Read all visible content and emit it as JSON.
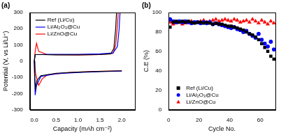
{
  "chart_data": [
    {
      "type": "line",
      "title": "(a)",
      "xlabel": "Capacity (mAh cm⁻²)",
      "ylabel": "Potential (V, vs Li/Li⁺)",
      "xlim": [
        -0.1,
        2.3
      ],
      "xticks": [
        {
          "value": 0,
          "label": "0.0"
        },
        0.5,
        {
          "value": 1,
          "label": "1.0"
        },
        1.5,
        {
          "value": 2,
          "label": "2.0"
        }
      ],
      "ylim": [
        -300,
        300
      ],
      "yticks": [
        -300,
        -200,
        -100,
        0,
        100,
        200,
        300
      ],
      "grid": false,
      "legend": "upper left",
      "series": [
        {
          "name": "Ref (Li/Cu)",
          "color": "#000000",
          "line_style": "solid",
          "x": [
            0,
            0.01,
            0.03,
            0.06,
            0.15,
            0.5,
            1.0,
            1.5,
            2.0,
            null,
            0,
            0.02,
            0.2,
            0.5,
            1.0,
            1.5,
            1.75,
            1.82,
            1.86,
            1.88
          ],
          "values": [
            0,
            -100,
            -170,
            -120,
            -90,
            -75,
            -68,
            -64,
            -60,
            null,
            0,
            40,
            40,
            38,
            38,
            40,
            45,
            80,
            200,
            300
          ]
        },
        {
          "name": "Li/Al₂O₃@Cu",
          "color": "#0000ff",
          "line_style": "solid",
          "x": [
            0,
            0.01,
            0.02,
            0.05,
            0.15,
            0.5,
            1.0,
            1.5,
            2.0,
            null,
            0,
            0.02,
            0.3,
            1.0,
            1.5,
            1.8,
            1.9,
            1.94,
            1.96
          ],
          "values": [
            0,
            -120,
            -210,
            -150,
            -95,
            -78,
            -70,
            -65,
            -62,
            null,
            0,
            40,
            42,
            42,
            45,
            50,
            90,
            200,
            300
          ]
        },
        {
          "name": "Li/ZnO@Cu",
          "color": "#ff0000",
          "line_style": "solid",
          "x": [
            0,
            0.03,
            0.1,
            0.18,
            0.3,
            0.8,
            1.4,
            2.0,
            null,
            0,
            0.02,
            0.05,
            0.1,
            0.3,
            1.0,
            1.5,
            1.8,
            1.86,
            1.9,
            1.92
          ],
          "values": [
            0,
            -80,
            -150,
            -110,
            -85,
            -70,
            -64,
            -60,
            null,
            0,
            60,
            110,
            60,
            40,
            38,
            40,
            48,
            100,
            220,
            300
          ]
        }
      ]
    },
    {
      "type": "scatter",
      "title": "(b)",
      "xlabel": "Cycle No.",
      "ylabel": "C.E (%)",
      "xlim": [
        0,
        70
      ],
      "xticks": [
        0,
        20,
        40,
        60
      ],
      "ylim": [
        0,
        100
      ],
      "yticks": [
        0,
        20,
        40,
        60,
        80,
        100
      ],
      "grid": false,
      "legend": "lower left",
      "series": [
        {
          "name": "Ref (Li/Cu)",
          "color": "#000000",
          "marker": "square",
          "x": [
            1,
            3,
            5,
            7,
            9,
            11,
            13,
            15,
            17,
            19,
            21,
            23,
            25,
            27,
            29,
            31,
            33,
            35,
            37,
            39,
            41,
            43,
            45,
            47,
            49,
            51,
            53,
            55,
            57,
            59,
            61,
            63,
            65,
            67,
            69
          ],
          "values": [
            85,
            90,
            91,
            90,
            91,
            90,
            91,
            90,
            89,
            90,
            90,
            89,
            90,
            89,
            88,
            89,
            88,
            88,
            87,
            86,
            86,
            85,
            84,
            83,
            82,
            80,
            78,
            77,
            75,
            72,
            68,
            64,
            60,
            55,
            52
          ]
        },
        {
          "name": "Li/Al₂O₃@Cu",
          "color": "#0000ff",
          "marker": "circle",
          "x": [
            1,
            3,
            5,
            7,
            9,
            11,
            13,
            15,
            17,
            19,
            21,
            23,
            25,
            27,
            29,
            31,
            33,
            35,
            37,
            39,
            41,
            43,
            45,
            47,
            49,
            51,
            53,
            55,
            57,
            59,
            61,
            63,
            65,
            67,
            69
          ],
          "values": [
            93,
            91,
            90,
            91,
            90,
            91,
            90,
            89,
            90,
            90,
            89,
            90,
            89,
            90,
            88,
            89,
            88,
            87,
            86,
            85,
            84,
            85,
            83,
            82,
            80,
            81,
            78,
            76,
            74,
            78,
            72,
            68,
            65,
            70,
            62
          ]
        },
        {
          "name": "Li/ZnO@Cu",
          "color": "#ff0000",
          "marker": "triangle",
          "x": [
            1,
            3,
            5,
            7,
            9,
            11,
            13,
            15,
            17,
            19,
            21,
            23,
            25,
            27,
            29,
            31,
            33,
            35,
            37,
            39,
            41,
            43,
            45,
            47,
            49,
            51,
            53,
            55,
            57,
            59,
            61,
            63,
            65,
            67,
            69
          ],
          "values": [
            90,
            88,
            89,
            90,
            88,
            89,
            90,
            91,
            89,
            90,
            91,
            92,
            90,
            91,
            92,
            93,
            91,
            92,
            93,
            92,
            91,
            93,
            92,
            90,
            91,
            92,
            90,
            93,
            91,
            89,
            92,
            90,
            88,
            91,
            89
          ]
        }
      ]
    }
  ]
}
